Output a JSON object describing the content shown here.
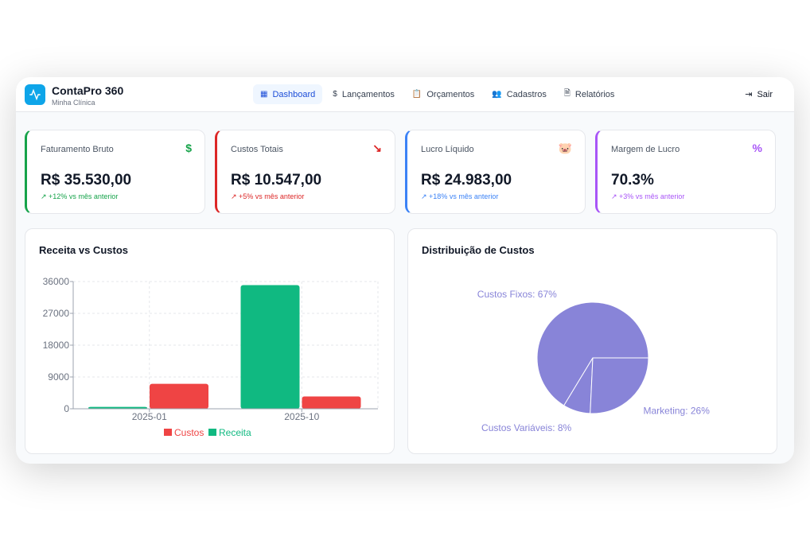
{
  "app": {
    "title": "ContaPro 360",
    "subtitle": "Minha Clínica"
  },
  "nav": [
    {
      "label": "Dashboard",
      "icon": "dashboard-icon"
    },
    {
      "label": "Lançamentos",
      "icon": "dollar-icon"
    },
    {
      "label": "Orçamentos",
      "icon": "clipboard-icon"
    },
    {
      "label": "Cadastros",
      "icon": "users-icon"
    },
    {
      "label": "Relatórios",
      "icon": "file-icon"
    }
  ],
  "logout": "Sair",
  "cards": [
    {
      "label": "Faturamento Bruto",
      "value": "R$ 35.530,00",
      "change": "+12% vs mês anterior",
      "icon": "$",
      "color": "#16a34a"
    },
    {
      "label": "Custos Totais",
      "value": "R$ 10.547,00",
      "change": "+5% vs mês anterior",
      "icon": "↘",
      "color": "#dc2626"
    },
    {
      "label": "Lucro Líquido",
      "value": "R$ 24.983,00",
      "change": "+18% vs mês anterior",
      "icon": "🐷",
      "color": "#3b82f6"
    },
    {
      "label": "Margem de Lucro",
      "value": "70.3%",
      "change": "+3% vs mês anterior",
      "icon": "%",
      "color": "#a855f7"
    }
  ],
  "chart_data": [
    {
      "type": "bar",
      "title": "Receita vs Custos",
      "categories": [
        "2025-01",
        "2025-10"
      ],
      "series": [
        {
          "name": "Receita",
          "color": "#10b981",
          "values": [
            530,
            35000
          ]
        },
        {
          "name": "Custos",
          "color": "#ef4444",
          "values": [
            7047,
            3500
          ]
        }
      ],
      "yticks": [
        0,
        9000,
        18000,
        27000,
        36000
      ],
      "ylim": [
        0,
        36000
      ],
      "legend": [
        "Custos",
        "Receita"
      ],
      "grid": true
    },
    {
      "type": "pie",
      "title": "Distribuição de Custos",
      "color": "#8884d8",
      "slices": [
        {
          "name": "Custos Fixos",
          "value": 67,
          "label": "Custos Fixos: 67%"
        },
        {
          "name": "Custos Variáveis",
          "value": 8,
          "label": "Custos Variáveis: 8%"
        },
        {
          "name": "Marketing",
          "value": 26,
          "label": "Marketing: 26%"
        }
      ]
    }
  ]
}
